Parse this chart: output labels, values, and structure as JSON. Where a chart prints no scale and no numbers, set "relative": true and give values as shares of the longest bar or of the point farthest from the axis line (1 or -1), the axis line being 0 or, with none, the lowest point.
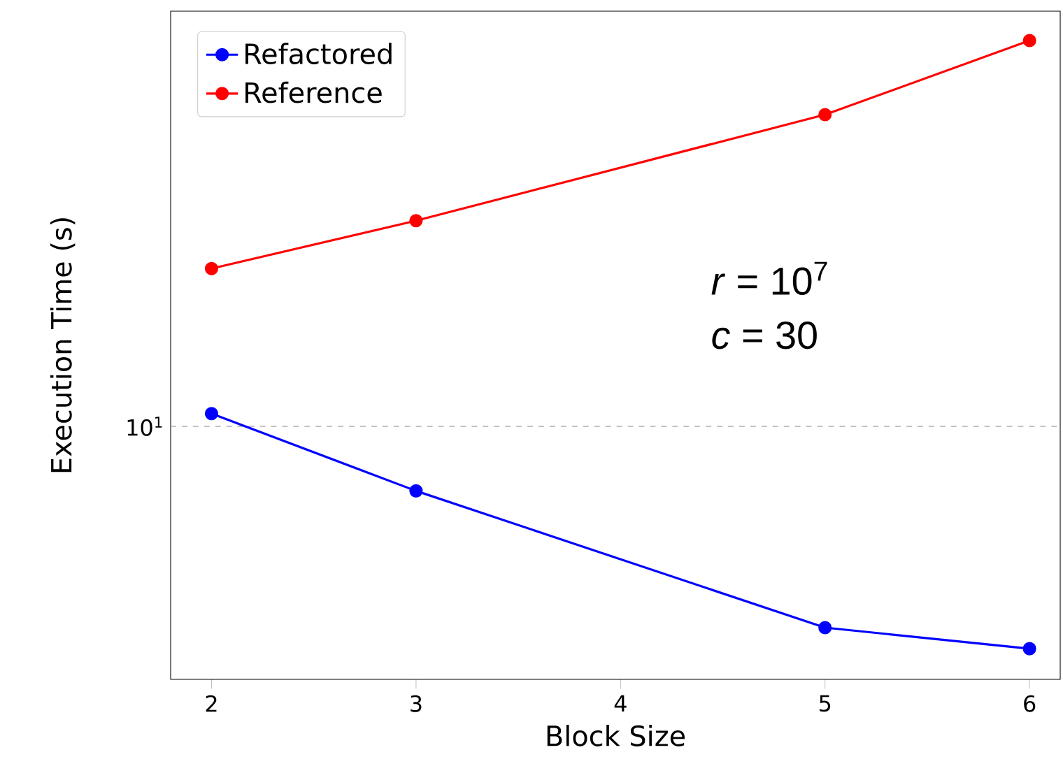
{
  "chart_data": {
    "type": "line",
    "xlabel": "Block Size",
    "ylabel": "Execution Time (s)",
    "x": [
      2,
      3,
      5,
      6
    ],
    "series": [
      {
        "name": "Refactored",
        "color": "#0000ff",
        "values": [
          0.416,
          0.295,
          0.081,
          0.048
        ]
      },
      {
        "name": "Reference",
        "color": "#ff0000",
        "values": [
          0.643,
          0.718,
          0.884,
          1
        ]
      }
    ],
    "relative": true,
    "xlim": [
      1.8,
      6.15
    ],
    "xticks": [
      2,
      3,
      4,
      5,
      6
    ],
    "ref_lines": [
      {
        "axis": "y",
        "value": 0.396,
        "color": "#b0b0b0",
        "line_style": "dashed"
      }
    ],
    "legend": "top left",
    "marker": "circle",
    "line_style": "solid",
    "annotations": [
      "10$^{1}$",
      "*r* = 10$^{7}$",
      "*c* = 30"
    ]
  }
}
